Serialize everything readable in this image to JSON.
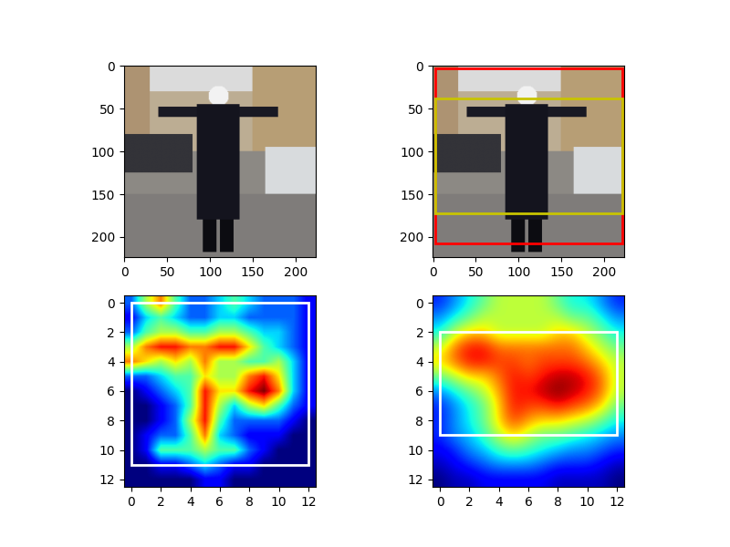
{
  "chart_data": [
    {
      "type": "image",
      "xlim": [
        -0.5,
        223.5
      ],
      "ylim": [
        223.5,
        -0.5
      ],
      "xticks": [
        0,
        50,
        100,
        150,
        200
      ],
      "yticks": [
        0,
        50,
        100,
        150,
        200
      ]
    },
    {
      "type": "image",
      "xlim": [
        -0.5,
        223.5
      ],
      "ylim": [
        223.5,
        -0.5
      ],
      "xticks": [
        0,
        50,
        100,
        150,
        200
      ],
      "yticks": [
        0,
        50,
        100,
        150,
        200
      ],
      "boxes": [
        {
          "x0": 3,
          "y0": 3,
          "x1": 221,
          "y1": 207,
          "color": "#ff0000"
        },
        {
          "x0": 3,
          "y0": 38,
          "x1": 221,
          "y1": 172,
          "color": "#c8c400"
        }
      ]
    },
    {
      "type": "heatmap",
      "color": "jet",
      "xlim": [
        -0.5,
        12.5
      ],
      "ylim": [
        12.5,
        -0.5
      ],
      "xticks": [
        0,
        2,
        4,
        6,
        8,
        10,
        12
      ],
      "yticks": [
        0,
        2,
        4,
        6,
        8,
        10,
        12
      ],
      "boxes": [
        {
          "x0": 0,
          "y0": 0,
          "x1": 12,
          "y1": 11,
          "color": "#ffffff"
        }
      ],
      "cells": [
        [
          0.3,
          0.6,
          0.8,
          0.5,
          0.3,
          0.3,
          0.4,
          0.5,
          0.4,
          0.3,
          0.3,
          0.3,
          0.2
        ],
        [
          0.2,
          0.4,
          0.5,
          0.4,
          0.3,
          0.3,
          0.4,
          0.4,
          0.3,
          0.3,
          0.3,
          0.3,
          0.2
        ],
        [
          0.3,
          0.5,
          0.6,
          0.6,
          0.5,
          0.5,
          0.6,
          0.6,
          0.5,
          0.4,
          0.4,
          0.3,
          0.2
        ],
        [
          0.6,
          0.8,
          0.9,
          0.9,
          0.8,
          0.8,
          0.9,
          0.9,
          0.7,
          0.5,
          0.4,
          0.3,
          0.2
        ],
        [
          0.8,
          0.7,
          0.6,
          0.7,
          0.6,
          0.8,
          0.6,
          0.6,
          0.5,
          0.5,
          0.6,
          0.4,
          0.2
        ],
        [
          0.3,
          0.3,
          0.4,
          0.5,
          0.5,
          0.7,
          0.6,
          0.6,
          0.8,
          0.9,
          0.7,
          0.4,
          0.2
        ],
        [
          0.1,
          0.2,
          0.3,
          0.4,
          0.5,
          0.9,
          0.7,
          0.7,
          0.9,
          1.0,
          0.8,
          0.4,
          0.2
        ],
        [
          0.1,
          0.1,
          0.2,
          0.3,
          0.5,
          0.9,
          0.6,
          0.4,
          0.6,
          0.7,
          0.5,
          0.3,
          0.2
        ],
        [
          0.1,
          0.1,
          0.2,
          0.3,
          0.6,
          0.9,
          0.5,
          0.3,
          0.3,
          0.3,
          0.3,
          0.2,
          0.1
        ],
        [
          0.1,
          0.2,
          0.3,
          0.3,
          0.5,
          0.8,
          0.4,
          0.3,
          0.2,
          0.2,
          0.2,
          0.1,
          0.1
        ],
        [
          0.1,
          0.2,
          0.5,
          0.5,
          0.5,
          0.6,
          0.5,
          0.5,
          0.3,
          0.2,
          0.1,
          0.1,
          0.1
        ],
        [
          0.1,
          0.1,
          0.2,
          0.2,
          0.3,
          0.4,
          0.3,
          0.2,
          0.2,
          0.1,
          0.1,
          0.1,
          0.1
        ],
        [
          0.1,
          0.1,
          0.1,
          0.1,
          0.1,
          0.2,
          0.2,
          0.1,
          0.1,
          0.1,
          0.1,
          0.1,
          0.1
        ]
      ]
    },
    {
      "type": "heatmap",
      "color": "jet",
      "xlim": [
        -0.5,
        12.5
      ],
      "ylim": [
        12.5,
        -0.5
      ],
      "xticks": [
        0,
        2,
        4,
        6,
        8,
        10,
        12
      ],
      "yticks": [
        0,
        2,
        4,
        6,
        8,
        10,
        12
      ],
      "boxes": [
        {
          "x0": 0,
          "y0": 2,
          "x1": 12,
          "y1": 9,
          "color": "#ffffff"
        }
      ],
      "cells": [
        [
          0.2,
          0.3,
          0.4,
          0.5,
          0.6,
          0.6,
          0.6,
          0.6,
          0.5,
          0.4,
          0.4,
          0.3,
          0.2
        ],
        [
          0.3,
          0.4,
          0.5,
          0.6,
          0.6,
          0.6,
          0.6,
          0.6,
          0.6,
          0.5,
          0.5,
          0.4,
          0.3
        ],
        [
          0.4,
          0.6,
          0.7,
          0.7,
          0.6,
          0.6,
          0.6,
          0.6,
          0.7,
          0.7,
          0.6,
          0.5,
          0.4
        ],
        [
          0.6,
          0.8,
          0.9,
          0.9,
          0.8,
          0.8,
          0.8,
          0.8,
          0.8,
          0.8,
          0.7,
          0.6,
          0.5
        ],
        [
          0.7,
          0.8,
          0.9,
          0.9,
          0.85,
          0.85,
          0.8,
          0.85,
          0.85,
          0.85,
          0.8,
          0.7,
          0.6
        ],
        [
          0.5,
          0.6,
          0.7,
          0.7,
          0.8,
          0.9,
          0.85,
          0.9,
          0.95,
          0.95,
          0.9,
          0.8,
          0.6
        ],
        [
          0.3,
          0.4,
          0.5,
          0.6,
          0.75,
          0.9,
          0.9,
          0.95,
          1.0,
          0.95,
          0.9,
          0.8,
          0.6
        ],
        [
          0.2,
          0.3,
          0.4,
          0.5,
          0.7,
          0.9,
          0.85,
          0.85,
          0.9,
          0.85,
          0.8,
          0.7,
          0.5
        ],
        [
          0.2,
          0.3,
          0.4,
          0.5,
          0.7,
          0.85,
          0.75,
          0.7,
          0.7,
          0.65,
          0.6,
          0.5,
          0.4
        ],
        [
          0.2,
          0.3,
          0.35,
          0.45,
          0.6,
          0.7,
          0.6,
          0.5,
          0.5,
          0.45,
          0.4,
          0.35,
          0.3
        ],
        [
          0.15,
          0.2,
          0.3,
          0.35,
          0.45,
          0.5,
          0.45,
          0.4,
          0.35,
          0.3,
          0.3,
          0.25,
          0.2
        ],
        [
          0.1,
          0.15,
          0.2,
          0.25,
          0.3,
          0.3,
          0.3,
          0.25,
          0.2,
          0.2,
          0.2,
          0.15,
          0.1
        ],
        [
          0.05,
          0.1,
          0.1,
          0.15,
          0.15,
          0.15,
          0.15,
          0.15,
          0.1,
          0.1,
          0.1,
          0.1,
          0.05
        ]
      ]
    }
  ]
}
